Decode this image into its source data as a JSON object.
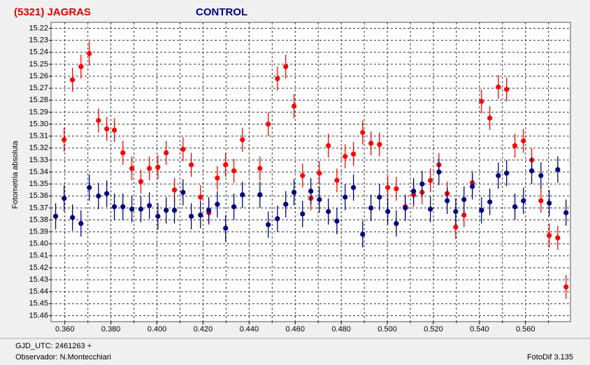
{
  "chart_data": {
    "type": "scatter",
    "ylabel": "Fotometria absoluta",
    "xlim": [
      0.354,
      0.5795
    ],
    "ylim": [
      15.215,
      15.465
    ],
    "y_inverted": true,
    "grid": true,
    "xticks": [
      {
        "value": 0.36,
        "label": "0.360"
      },
      {
        "value": 0.38,
        "label": "0.380"
      },
      {
        "value": 0.4,
        "label": "0.400"
      },
      {
        "value": 0.42,
        "label": "0.420"
      },
      {
        "value": 0.44,
        "label": "0.440"
      },
      {
        "value": 0.46,
        "label": "0.460"
      },
      {
        "value": 0.48,
        "label": "0.480"
      },
      {
        "value": 0.5,
        "label": "0.500"
      },
      {
        "value": 0.52,
        "label": "0.520"
      },
      {
        "value": 0.54,
        "label": "0.540"
      },
      {
        "value": 0.56,
        "label": "0.560"
      }
    ],
    "x_minor_ticks": [
      0.37,
      0.39,
      0.41,
      0.43,
      0.45,
      0.47,
      0.49,
      0.51,
      0.53,
      0.55,
      0.57
    ],
    "yticks": [
      15.22,
      15.23,
      15.24,
      15.25,
      15.26,
      15.27,
      15.28,
      15.29,
      {
        "value": 15.3,
        "label": "15.30"
      },
      15.31,
      15.32,
      15.33,
      15.34,
      15.35,
      15.36,
      15.37,
      15.38,
      15.39,
      {
        "value": 15.4,
        "label": "15.40"
      },
      15.41,
      15.42,
      15.43,
      15.44,
      15.45,
      15.46
    ],
    "series": [
      {
        "name": "(5321) JAGRAS",
        "color": "#ff0000",
        "error": 0.01,
        "x": [
          0.3597,
          0.3633,
          0.367,
          0.3706,
          0.3746,
          0.3782,
          0.3815,
          0.3852,
          0.3891,
          0.393,
          0.3967,
          0.4004,
          0.404,
          0.4076,
          0.4113,
          0.4149,
          0.4189,
          0.4225,
          0.4262,
          0.4298,
          0.4334,
          0.4371,
          0.4447,
          0.4483,
          0.4523,
          0.4559,
          0.4595,
          0.4632,
          0.4668,
          0.4705,
          0.4744,
          0.4781,
          0.4817,
          0.4853,
          0.4893,
          0.4929,
          0.4966,
          0.5002,
          0.5039,
          0.5078,
          0.5114,
          0.5151,
          0.5187,
          0.5224,
          0.526,
          0.5297,
          0.5333,
          0.5369,
          0.5409,
          0.5445,
          0.5482,
          0.5518,
          0.5554,
          0.5591,
          0.5627,
          0.5667,
          0.5703,
          0.574,
          0.5776
        ],
        "values": [
          15.313,
          15.263,
          15.252,
          15.241,
          15.297,
          15.304,
          15.305,
          15.324,
          15.337,
          15.348,
          15.337,
          15.336,
          15.324,
          15.355,
          15.321,
          15.334,
          15.361,
          15.374,
          15.345,
          15.334,
          15.339,
          15.313,
          15.337,
          15.3,
          15.262,
          15.252,
          15.285,
          15.343,
          15.362,
          15.341,
          15.318,
          15.347,
          15.327,
          15.325,
          15.307,
          15.316,
          15.317,
          15.353,
          15.354,
          15.369,
          15.359,
          15.357,
          15.347,
          15.334,
          15.358,
          15.386,
          15.376,
          15.349,
          15.281,
          15.295,
          15.269,
          15.271,
          15.318,
          15.314,
          15.33,
          15.364,
          15.393,
          15.395,
          15.436
        ]
      },
      {
        "name": "CONTROL",
        "color": "#000080",
        "error": 0.011,
        "x": [
          0.356,
          0.3597,
          0.3633,
          0.367,
          0.3706,
          0.3746,
          0.3782,
          0.3815,
          0.3852,
          0.3891,
          0.393,
          0.3967,
          0.4004,
          0.404,
          0.4076,
          0.4113,
          0.4149,
          0.4189,
          0.4225,
          0.4262,
          0.4298,
          0.4334,
          0.4371,
          0.4447,
          0.4483,
          0.4523,
          0.4559,
          0.4595,
          0.4632,
          0.4668,
          0.4705,
          0.4744,
          0.4781,
          0.4817,
          0.4853,
          0.4893,
          0.4929,
          0.4966,
          0.5002,
          0.5039,
          0.5078,
          0.5114,
          0.5151,
          0.5187,
          0.5224,
          0.526,
          0.5297,
          0.5333,
          0.5369,
          0.5409,
          0.5445,
          0.5482,
          0.5518,
          0.5554,
          0.5591,
          0.5627,
          0.5667,
          0.5703,
          0.574,
          0.5776
        ],
        "values": [
          15.377,
          15.362,
          15.378,
          15.383,
          15.353,
          15.36,
          15.358,
          15.369,
          15.369,
          15.371,
          15.371,
          15.368,
          15.377,
          15.372,
          15.372,
          15.357,
          15.377,
          15.376,
          15.372,
          15.367,
          15.387,
          15.369,
          15.359,
          15.359,
          15.384,
          15.379,
          15.367,
          15.357,
          15.375,
          15.356,
          15.363,
          15.373,
          15.381,
          15.361,
          15.353,
          15.392,
          15.37,
          15.361,
          15.373,
          15.383,
          15.37,
          15.356,
          15.35,
          15.371,
          15.34,
          15.364,
          15.373,
          15.363,
          15.352,
          15.372,
          15.365,
          15.343,
          15.341,
          15.369,
          15.364,
          15.339,
          15.343,
          15.366,
          15.338,
          15.374
        ]
      }
    ]
  },
  "footer": {
    "gjd": "GJD_UTC: 2461263 +",
    "observer": "Observador: N.Montecchiari",
    "software": "FotoDif 3.135"
  }
}
